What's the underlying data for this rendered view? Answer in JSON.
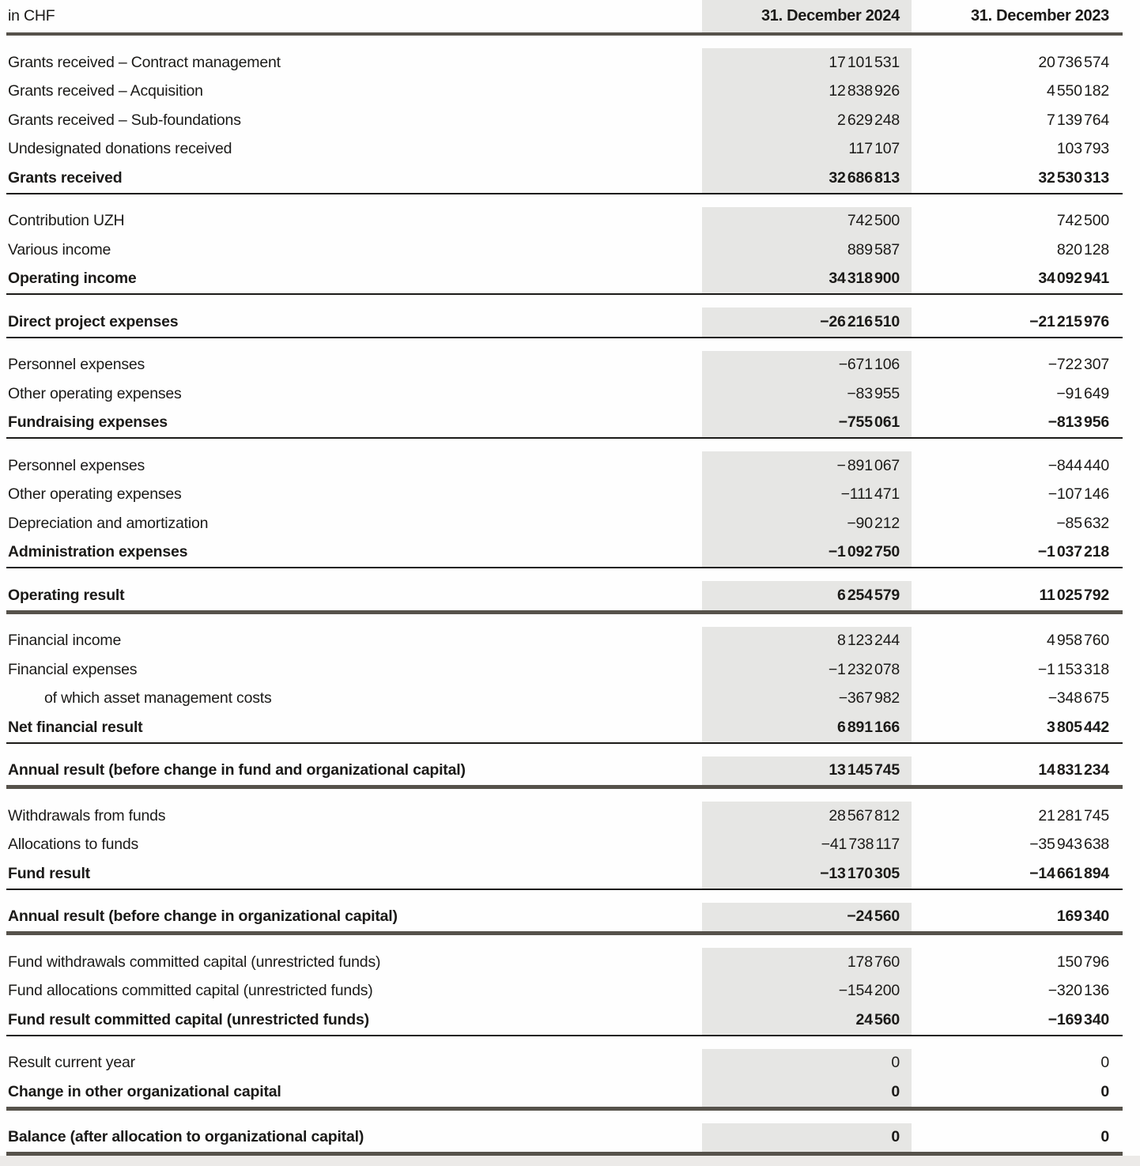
{
  "header": {
    "unit_label": "in CHF",
    "col_2024": "31. December 2024",
    "col_2023": "31. December 2023"
  },
  "colors": {
    "highlight_band": "#e6e6e4",
    "thick_rule": "#56524b",
    "thin_rule": "#1b1a18",
    "text": "#1b1a18"
  },
  "sections": [
    {
      "rule": "thin",
      "rows": [
        {
          "label": "Grants received – Contract management",
          "v2024": "17 101 531",
          "v2023": "20 736 574",
          "bold": false,
          "indent": false
        },
        {
          "label": "Grants received – Acquisition",
          "v2024": "12 838 926",
          "v2023": "4 550 182",
          "bold": false,
          "indent": false
        },
        {
          "label": "Grants received – Sub-foundations",
          "v2024": "2 629 248",
          "v2023": "7 139 764",
          "bold": false,
          "indent": false
        },
        {
          "label": "Undesignated donations received",
          "v2024": "117 107",
          "v2023": "103 793",
          "bold": false,
          "indent": false
        },
        {
          "label": "Grants received",
          "v2024": "32 686 813",
          "v2023": "32 530 313",
          "bold": true,
          "indent": false
        }
      ]
    },
    {
      "rule": "thin",
      "rows": [
        {
          "label": "Contribution UZH",
          "v2024": "742 500",
          "v2023": "742 500",
          "bold": false,
          "indent": false
        },
        {
          "label": "Various income",
          "v2024": "889 587",
          "v2023": "820 128",
          "bold": false,
          "indent": false
        },
        {
          "label": "Operating income",
          "v2024": "34 318 900",
          "v2023": "34 092 941",
          "bold": true,
          "indent": false
        }
      ]
    },
    {
      "rule": "thin",
      "rows": [
        {
          "label": "Direct project expenses",
          "v2024": "−26 216 510",
          "v2023": "−21 215 976",
          "bold": true,
          "indent": false
        }
      ]
    },
    {
      "rule": "thin",
      "rows": [
        {
          "label": "Personnel expenses",
          "v2024": "−671 106",
          "v2023": "−722 307",
          "bold": false,
          "indent": false
        },
        {
          "label": "Other operating expenses",
          "v2024": "−83 955",
          "v2023": "−91 649",
          "bold": false,
          "indent": false
        },
        {
          "label": "Fundraising expenses",
          "v2024": "−755 061",
          "v2023": "−813 956",
          "bold": true,
          "indent": false
        }
      ]
    },
    {
      "rule": "thin",
      "rows": [
        {
          "label": "Personnel expenses",
          "v2024": "− 891 067",
          "v2023": "−844 440",
          "bold": false,
          "indent": false
        },
        {
          "label": "Other operating expenses",
          "v2024": "−111 471",
          "v2023": "−107 146",
          "bold": false,
          "indent": false
        },
        {
          "label": "Depreciation and amortization",
          "v2024": "−90 212",
          "v2023": "−85 632",
          "bold": false,
          "indent": false
        },
        {
          "label": "Administration expenses",
          "v2024": "−1 092 750",
          "v2023": "−1 037 218",
          "bold": true,
          "indent": false
        }
      ]
    },
    {
      "rule": "thick",
      "rows": [
        {
          "label": "Operating result",
          "v2024": "6 254 579",
          "v2023": "11 025 792",
          "bold": true,
          "indent": false
        }
      ]
    },
    {
      "rule": "thin",
      "rows": [
        {
          "label": "Financial income",
          "v2024": "8 123 244",
          "v2023": "4 958 760",
          "bold": false,
          "indent": false
        },
        {
          "label": "Financial expenses",
          "v2024": "−1 232 078",
          "v2023": "−1 153 318",
          "bold": false,
          "indent": false
        },
        {
          "label": "of which asset management costs",
          "v2024": "−367 982",
          "v2023": "−348 675",
          "bold": false,
          "indent": true
        },
        {
          "label": "Net financial result",
          "v2024": "6 891 166",
          "v2023": "3 805 442",
          "bold": true,
          "indent": false
        }
      ]
    },
    {
      "rule": "thick",
      "rows": [
        {
          "label": "Annual result (before change in fund and organizational capital)",
          "v2024": "13 145 745",
          "v2023": "14 831 234",
          "bold": true,
          "indent": false
        }
      ]
    },
    {
      "rule": "thin",
      "rows": [
        {
          "label": "Withdrawals from funds",
          "v2024": "28 567 812",
          "v2023": "21 281 745",
          "bold": false,
          "indent": false
        },
        {
          "label": "Allocations to funds",
          "v2024": "−41 738 117",
          "v2023": "−35 943 638",
          "bold": false,
          "indent": false
        },
        {
          "label": "Fund result",
          "v2024": "−13 170 305",
          "v2023": "−14 661 894",
          "bold": true,
          "indent": false
        }
      ]
    },
    {
      "rule": "thick",
      "rows": [
        {
          "label": "Annual result (before change in organizational capital)",
          "v2024": "−24 560",
          "v2023": "169 340",
          "bold": true,
          "indent": false
        }
      ]
    },
    {
      "rule": "thin",
      "rows": [
        {
          "label": "Fund withdrawals committed capital (unrestricted funds)",
          "v2024": "178 760",
          "v2023": "150 796",
          "bold": false,
          "indent": false
        },
        {
          "label": "Fund allocations committed capital (unrestricted funds)",
          "v2024": "−154 200",
          "v2023": "−320 136",
          "bold": false,
          "indent": false
        },
        {
          "label": "Fund result committed capital (unrestricted funds)",
          "v2024": "24 560",
          "v2023": "−169 340",
          "bold": true,
          "indent": false
        }
      ]
    },
    {
      "rule": "thick",
      "rows": [
        {
          "label": "Result current year",
          "v2024": "0",
          "v2023": "0",
          "bold": false,
          "indent": false
        },
        {
          "label": "Change in other organizational capital",
          "v2024": "0",
          "v2023": "0",
          "bold": true,
          "indent": false
        }
      ]
    },
    {
      "rule": "thick",
      "rows": [
        {
          "label": "Balance (after allocation to organizational capital)",
          "v2024": "0",
          "v2023": "0",
          "bold": true,
          "indent": false
        }
      ]
    }
  ]
}
